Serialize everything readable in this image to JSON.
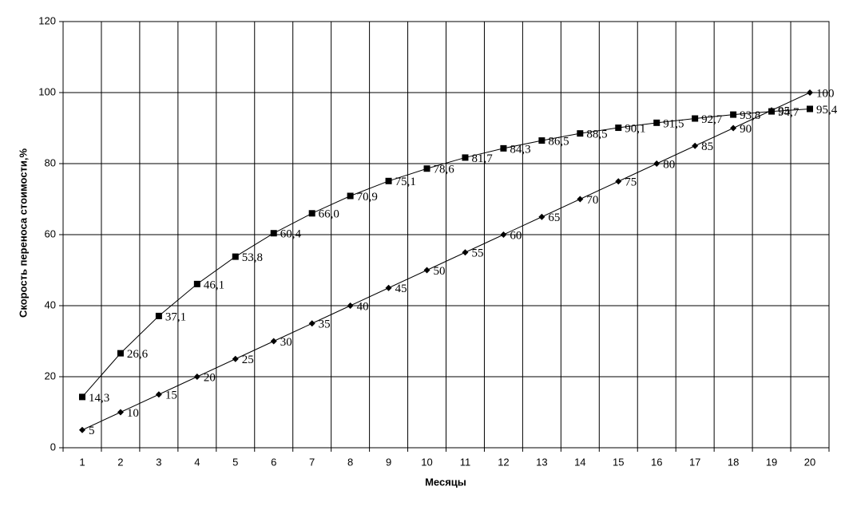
{
  "chart_data": {
    "type": "line",
    "x_label": "Месяцы",
    "y_label": "Скорость переноса стоимости,%",
    "categories": [
      "1",
      "2",
      "3",
      "4",
      "5",
      "6",
      "7",
      "8",
      "9",
      "10",
      "11",
      "12",
      "13",
      "14",
      "15",
      "16",
      "17",
      "18",
      "19",
      "20"
    ],
    "ylim": [
      0,
      120
    ],
    "yticks": [
      0,
      20,
      40,
      60,
      80,
      100,
      120
    ],
    "grid": true,
    "series": [
      {
        "color": "#000000",
        "marker": "square",
        "values": [
          14.3,
          26.6,
          37.1,
          46.1,
          53.8,
          60.4,
          66.0,
          70.9,
          75.1,
          78.6,
          81.7,
          84.3,
          86.5,
          88.5,
          90.1,
          91.5,
          92.7,
          93.8,
          94.7,
          95.4
        ],
        "value_labels": [
          "14,3",
          "26,6",
          "37,1",
          "46,1",
          "53,8",
          "60,4",
          "66,0",
          "70,9",
          "75,1",
          "78,6",
          "81,7",
          "84,3",
          "86,5",
          "88,5",
          "90,1",
          "91,5",
          "92,7",
          "93,8",
          "94,7",
          "95,4"
        ]
      },
      {
        "color": "#000000",
        "marker": "diamond",
        "values": [
          5,
          10,
          15,
          20,
          25,
          30,
          35,
          40,
          45,
          50,
          55,
          60,
          65,
          70,
          75,
          80,
          85,
          90,
          95,
          100
        ]
      }
    ]
  }
}
